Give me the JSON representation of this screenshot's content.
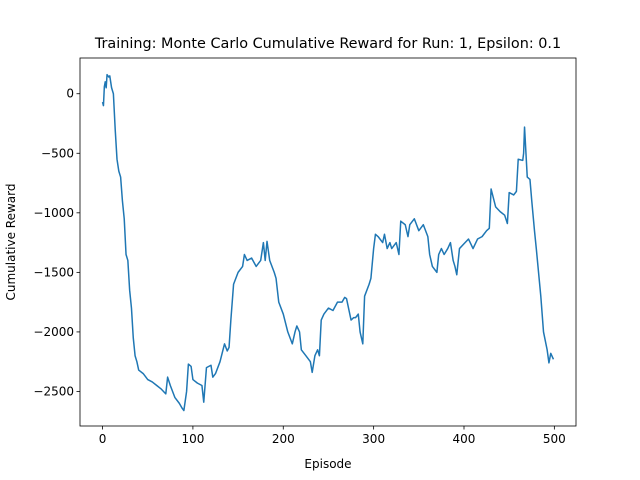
{
  "chart_data": {
    "type": "line",
    "title": "Training: Monte Carlo Cumulative Reward for Run: 1, Epsilon: 0.1",
    "x_label": "Episode",
    "y_label": "Cumulative Reward",
    "x": [
      0,
      1,
      2,
      3,
      4,
      5,
      7,
      8,
      10,
      12,
      14,
      16,
      18,
      20,
      22,
      24,
      26,
      28,
      30,
      32,
      34,
      36,
      38,
      40,
      45,
      50,
      55,
      60,
      65,
      70,
      72,
      75,
      80,
      85,
      88,
      90,
      93,
      95,
      98,
      100,
      105,
      110,
      112,
      115,
      120,
      122,
      125,
      130,
      135,
      138,
      140,
      142,
      145,
      150,
      155,
      157,
      160,
      165,
      170,
      175,
      178,
      180,
      182,
      185,
      190,
      192,
      195,
      200,
      205,
      210,
      213,
      215,
      218,
      220,
      225,
      230,
      232,
      235,
      238,
      240,
      242,
      245,
      250,
      255,
      260,
      265,
      268,
      270,
      275,
      278,
      280,
      283,
      285,
      288,
      290,
      295,
      297,
      300,
      302,
      305,
      310,
      312,
      315,
      318,
      320,
      325,
      328,
      330,
      335,
      338,
      340,
      345,
      350,
      355,
      360,
      362,
      365,
      370,
      372,
      375,
      378,
      382,
      385,
      388,
      390,
      392,
      395,
      400,
      405,
      410,
      415,
      420,
      425,
      428,
      430,
      435,
      440,
      445,
      448,
      450,
      455,
      458,
      460,
      465,
      466,
      467,
      470,
      473,
      475,
      478,
      480,
      485,
      488,
      492,
      494,
      496,
      499
    ],
    "series": [
      {
        "name": "Cumulative Reward",
        "color": "#1f77b4",
        "values": [
          -70,
          -100,
          60,
          100,
          50,
          160,
          140,
          150,
          50,
          0,
          -300,
          -550,
          -650,
          -700,
          -900,
          -1050,
          -1350,
          -1400,
          -1650,
          -1800,
          -2050,
          -2200,
          -2250,
          -2320,
          -2350,
          -2400,
          -2420,
          -2450,
          -2480,
          -2520,
          -2380,
          -2450,
          -2550,
          -2600,
          -2640,
          -2660,
          -2500,
          -2270,
          -2290,
          -2400,
          -2430,
          -2450,
          -2590,
          -2300,
          -2280,
          -2380,
          -2350,
          -2250,
          -2100,
          -2160,
          -2130,
          -1900,
          -1600,
          -1500,
          -1450,
          -1350,
          -1400,
          -1380,
          -1450,
          -1400,
          -1250,
          -1400,
          -1240,
          -1400,
          -1500,
          -1550,
          -1750,
          -1850,
          -2000,
          -2100,
          -2000,
          -1950,
          -2000,
          -2150,
          -2200,
          -2250,
          -2340,
          -2200,
          -2150,
          -2200,
          -1900,
          -1850,
          -1800,
          -1820,
          -1750,
          -1750,
          -1710,
          -1720,
          -1900,
          -1880,
          -1880,
          -1850,
          -2000,
          -2100,
          -1700,
          -1600,
          -1550,
          -1300,
          -1180,
          -1200,
          -1250,
          -1180,
          -1300,
          -1250,
          -1300,
          -1250,
          -1350,
          -1070,
          -1100,
          -1200,
          -1100,
          -1050,
          -1150,
          -1100,
          -1200,
          -1350,
          -1450,
          -1500,
          -1350,
          -1300,
          -1350,
          -1300,
          -1250,
          -1400,
          -1450,
          -1520,
          -1300,
          -1260,
          -1220,
          -1300,
          -1220,
          -1200,
          -1150,
          -1130,
          -800,
          -950,
          -990,
          -1020,
          -1090,
          -830,
          -850,
          -820,
          -550,
          -560,
          -500,
          -280,
          -700,
          -720,
          -900,
          -1150,
          -1300,
          -1700,
          -2000,
          -2150,
          -2260,
          -2180,
          -2230
        ]
      }
    ],
    "xlim": [
      -24.95,
      523.95
    ],
    "ylim": [
      -2790,
      300
    ],
    "xticks": [
      0,
      100,
      200,
      300,
      400,
      500
    ],
    "yticks": [
      {
        "value": -2500,
        "label": "−2500"
      },
      {
        "value": -2000,
        "label": "−2000"
      },
      {
        "value": -1500,
        "label": "−1500"
      },
      {
        "value": -1000,
        "label": "−1000"
      },
      {
        "value": -500,
        "label": "−500"
      },
      0
    ],
    "grid": false
  }
}
